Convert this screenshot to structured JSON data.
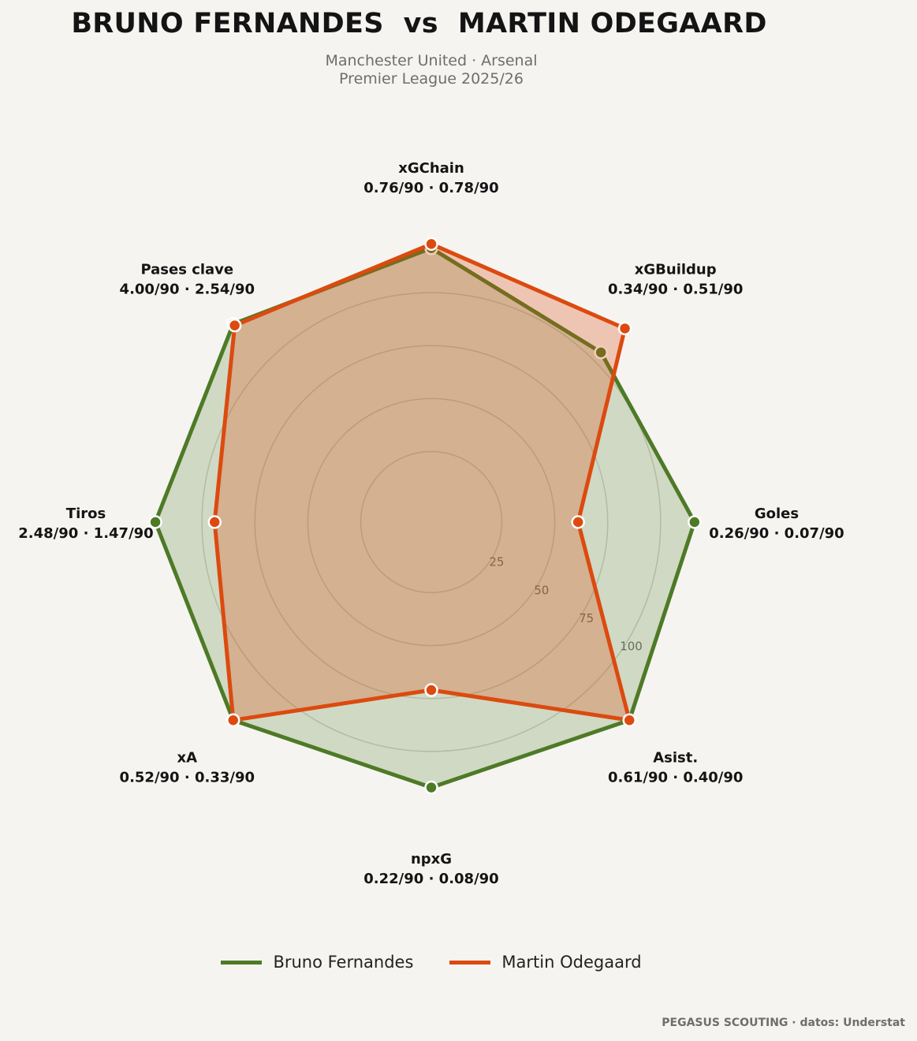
{
  "header": {
    "title": "BRUNO FERNANDES  vs  MARTIN ODEGAARD",
    "subtitle_line1": "Manchester United · Arsenal",
    "subtitle_line2": "Premier League 2025/26"
  },
  "chart_data": {
    "type": "radar",
    "range": [
      0,
      100
    ],
    "ring_ticks": [
      "25",
      "50",
      "75",
      "100"
    ],
    "axes": [
      {
        "name": "xGChain",
        "values_text": "0.76/90 · 0.78/90"
      },
      {
        "name": "xGBuildup",
        "values_text": "0.34/90 · 0.51/90"
      },
      {
        "name": "Goles",
        "values_text": "0.26/90 · 0.07/90"
      },
      {
        "name": "Asist.",
        "values_text": "0.61/90 · 0.40/90"
      },
      {
        "name": "npxG",
        "values_text": "0.22/90 · 0.08/90"
      },
      {
        "name": "xA",
        "values_text": "0.52/90 · 0.33/90"
      },
      {
        "name": "Tiros",
        "values_text": "2.48/90 · 1.47/90"
      },
      {
        "name": "Pases clave",
        "values_text": "4.00/90 · 2.54/90"
      }
    ],
    "series": [
      {
        "name": "Bruno Fernandes",
        "color": "#4e7a26",
        "values": [
          96,
          80,
          91,
          99,
          92,
          99,
          97,
          99
        ]
      },
      {
        "name": "Martin Odegaard",
        "color": "#dc4a0f",
        "values": [
          98,
          96,
          36,
          99,
          46,
          99,
          69,
          98
        ]
      }
    ]
  },
  "footer": {
    "credit": "PEGASUS SCOUTING · datos: Understat"
  }
}
